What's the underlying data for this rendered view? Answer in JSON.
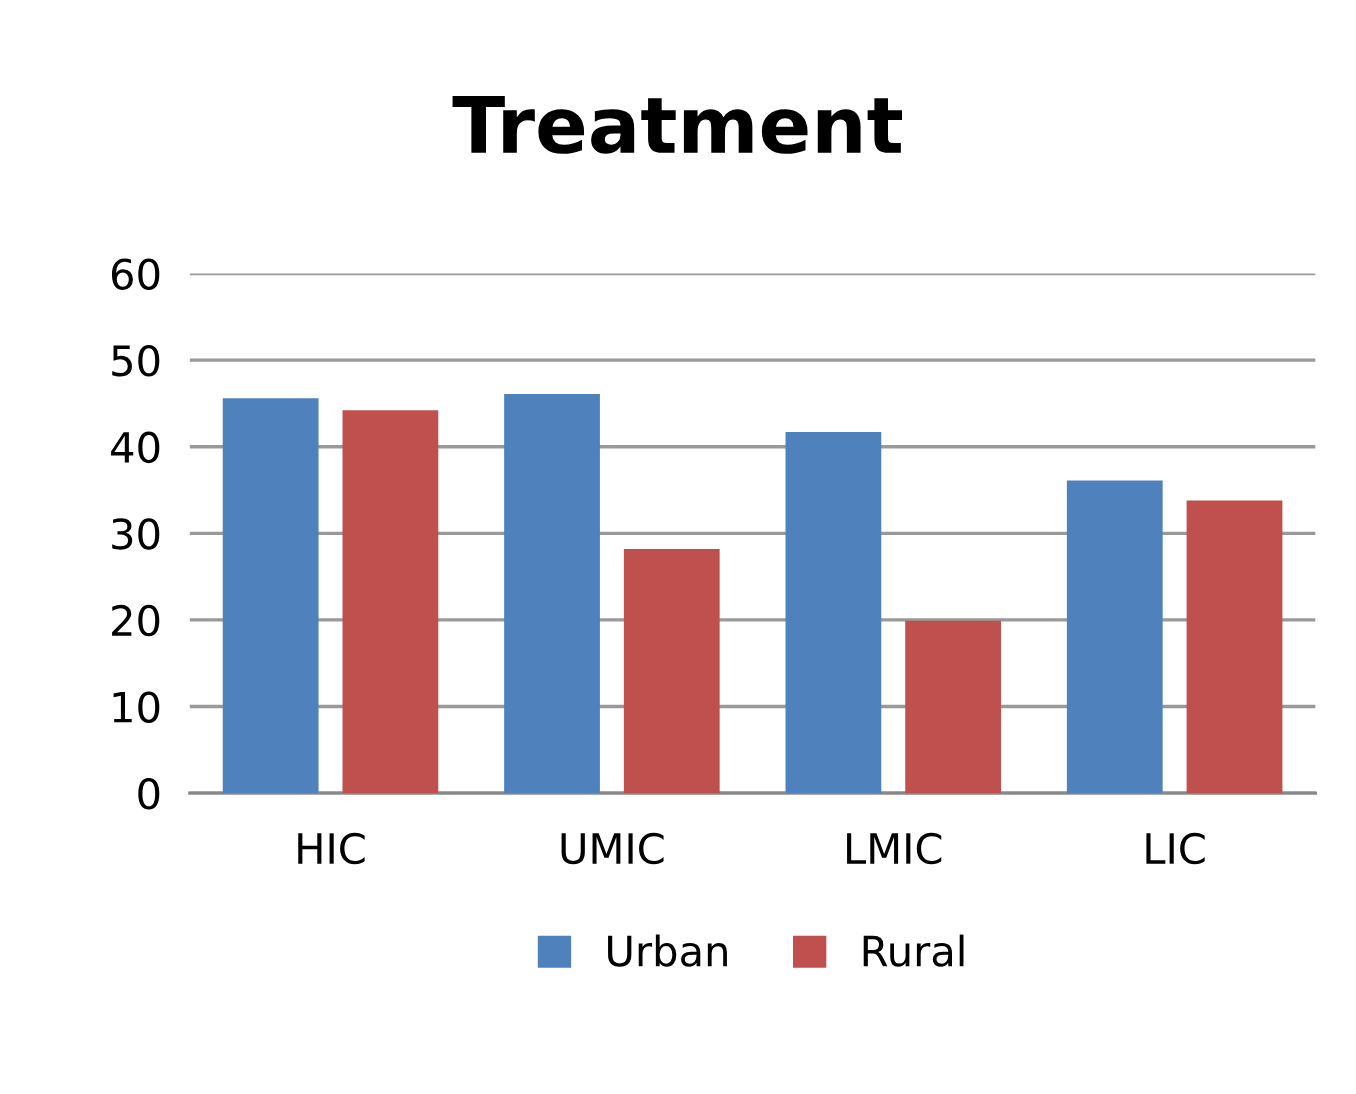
{
  "chart_data": {
    "type": "bar",
    "title": "Treatment",
    "categories": [
      "HIC",
      "UMIC",
      "LMIC",
      "LIC"
    ],
    "series": [
      {
        "name": "Urban",
        "color": "#4f81bd",
        "values": [
          45.6,
          46.1,
          41.7,
          36.1
        ]
      },
      {
        "name": "Rural",
        "color": "#c0504d",
        "values": [
          44.2,
          28.2,
          19.9,
          33.8
        ]
      }
    ],
    "ylim": [
      0,
      60
    ],
    "yticks": [
      0,
      10,
      20,
      30,
      40,
      50,
      60
    ],
    "grid": "y",
    "legend": "bottom"
  }
}
